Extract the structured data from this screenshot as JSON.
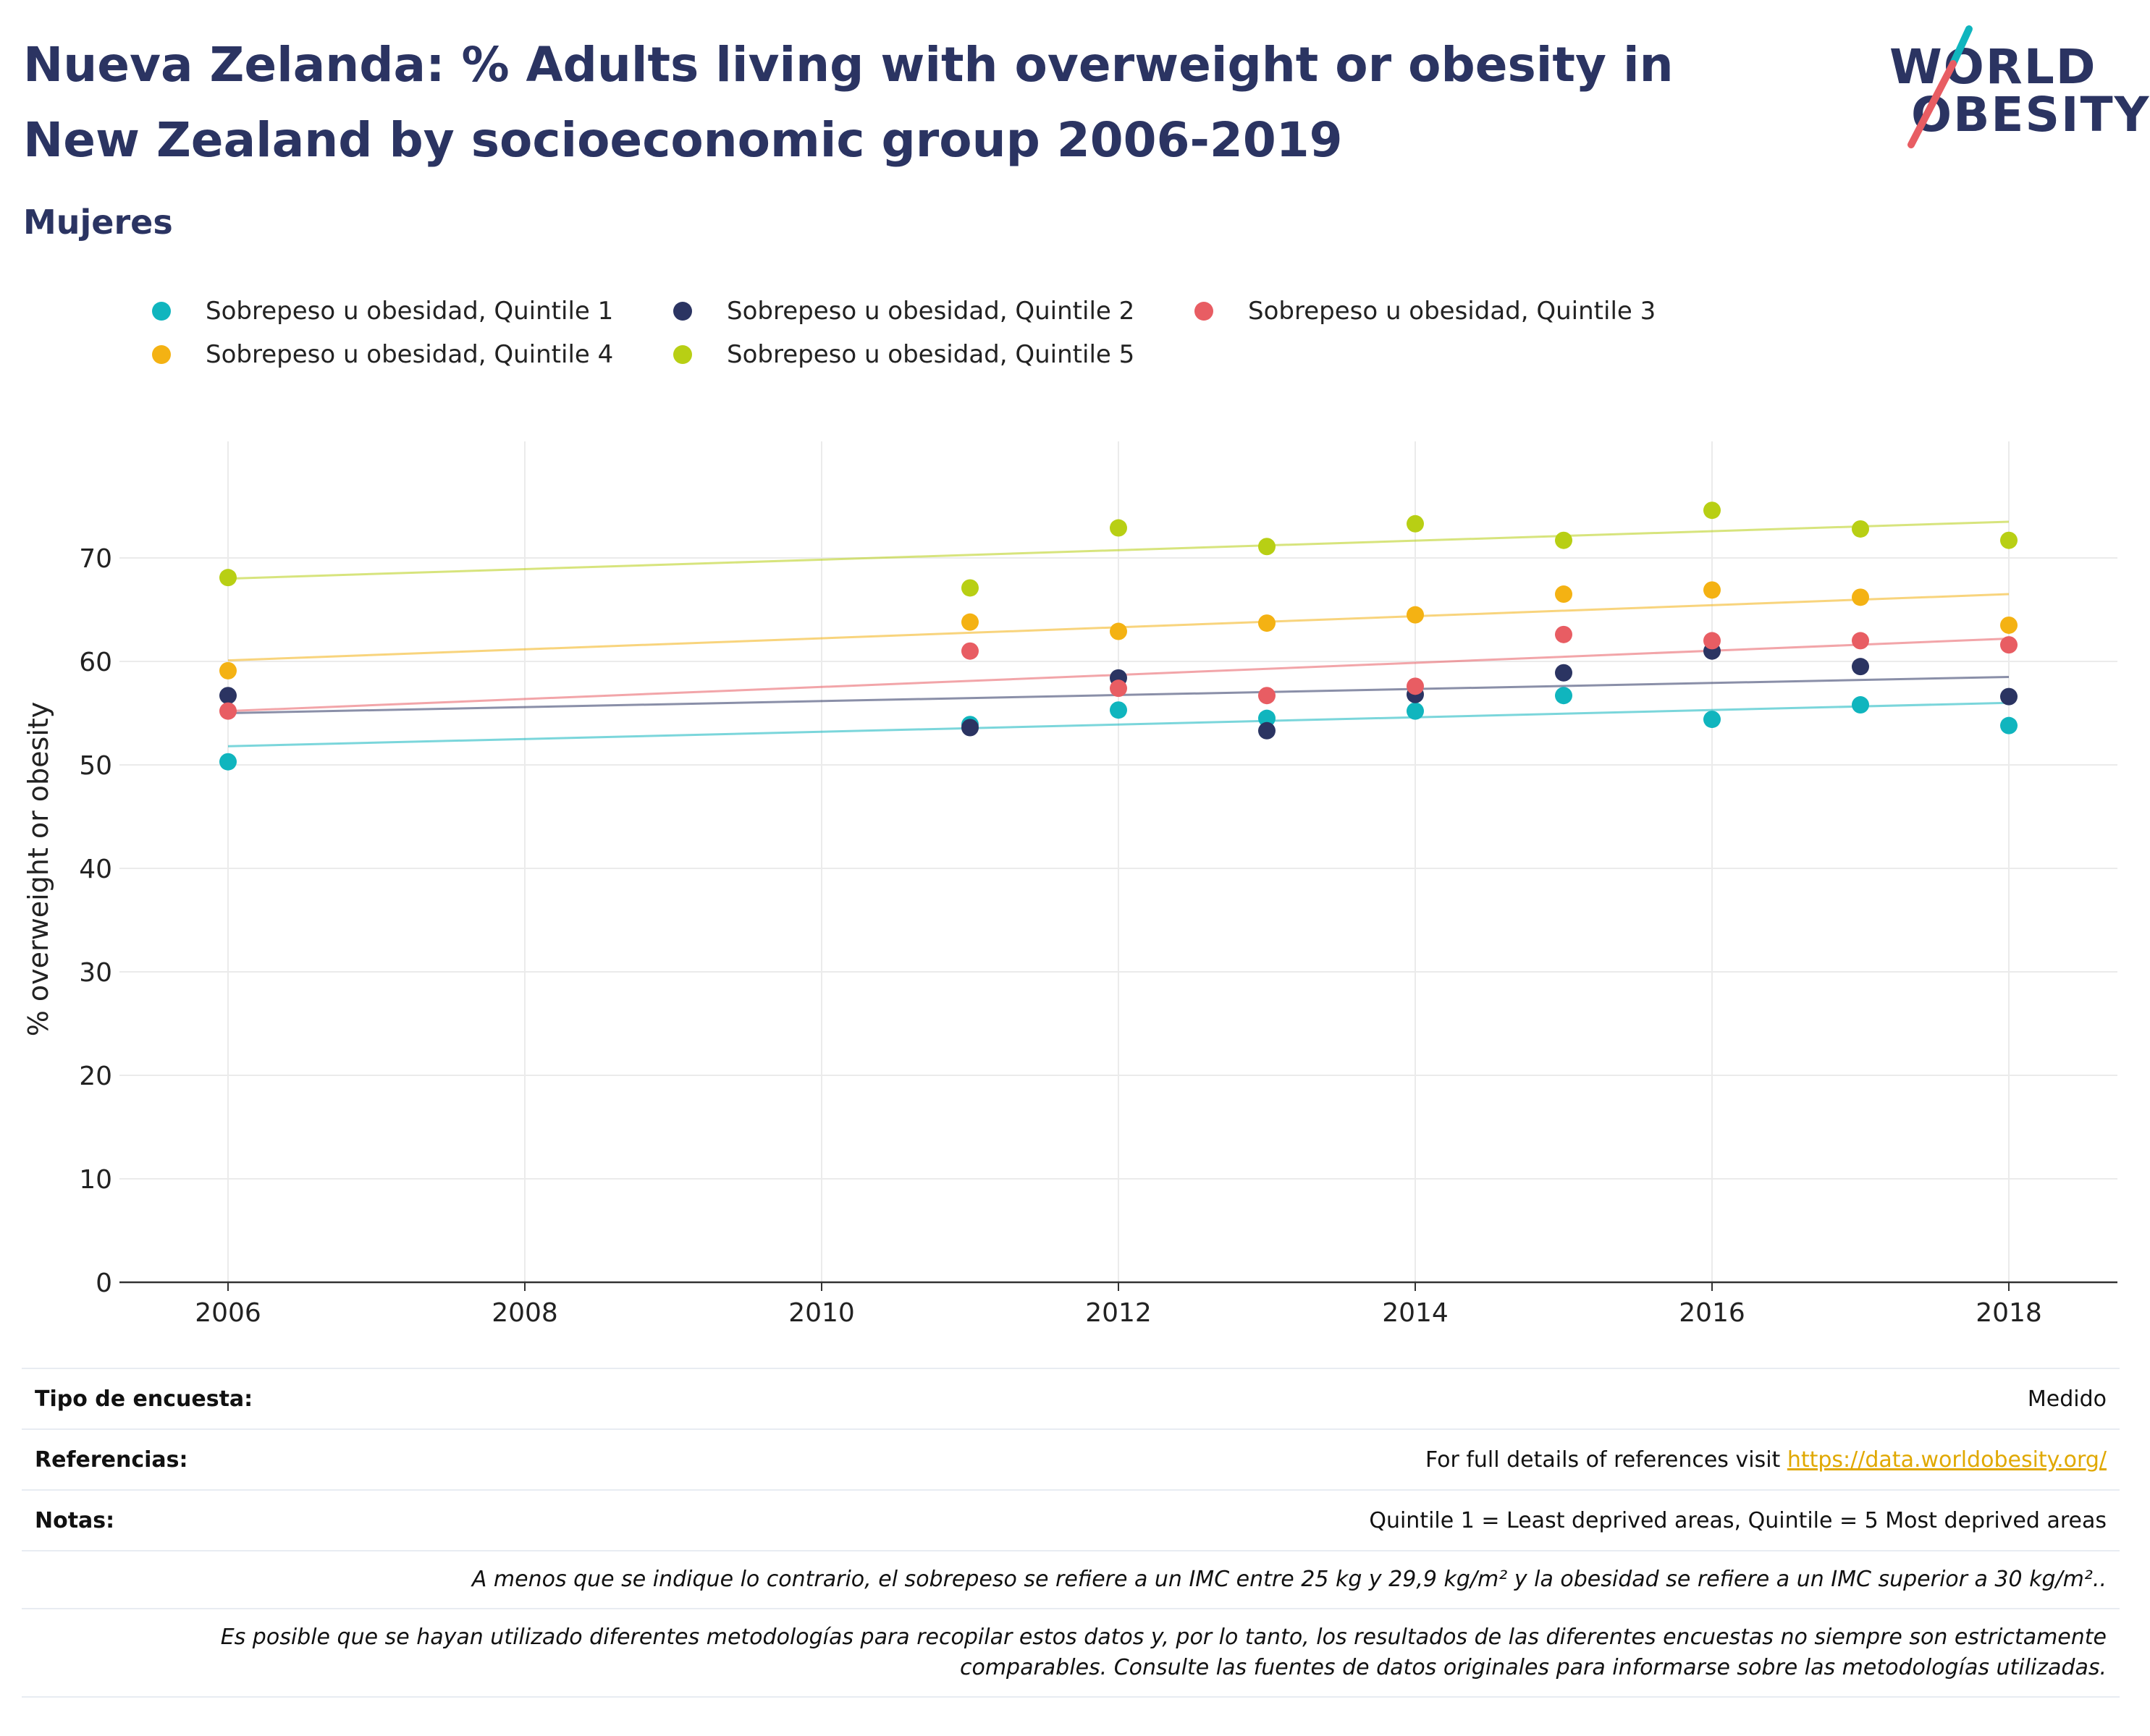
{
  "title": "Nueva Zelanda: % Adults living with overweight or obesity in New Zealand by socioeconomic group 2006-2019",
  "subtitle": "Mujeres",
  "logo": {
    "line1": "WORLD",
    "line2": "OBESITY"
  },
  "colors": {
    "q1": "#10b5be",
    "q2": "#2b3462",
    "q3": "#e85d63",
    "q4": "#f4b213",
    "q5": "#b8cf14",
    "accent": "#2b3462",
    "link": "#e0a800"
  },
  "legend": [
    {
      "label": "Sobrepeso u obesidad, Quintile 1",
      "color": "#10b5be"
    },
    {
      "label": "Sobrepeso u obesidad, Quintile 2",
      "color": "#2b3462"
    },
    {
      "label": "Sobrepeso u obesidad, Quintile 3",
      "color": "#e85d63"
    },
    {
      "label": "Sobrepeso u obesidad, Quintile 4",
      "color": "#f4b213"
    },
    {
      "label": "Sobrepeso u obesidad, Quintile 5",
      "color": "#b8cf14"
    }
  ],
  "chart_data": {
    "type": "scatter",
    "ylabel": "% overweight or obesity",
    "xlabel": "",
    "xlim": [
      2005.3,
      2018.8
    ],
    "ylim": [
      0,
      80
    ],
    "xticks": [
      2006,
      2008,
      2010,
      2012,
      2014,
      2016,
      2018
    ],
    "yticks": [
      0,
      10,
      20,
      30,
      40,
      50,
      60,
      70
    ],
    "grid": true,
    "legend_position": "top",
    "trendlines": true,
    "series": [
      {
        "name": "Sobrepeso u obesidad, Quintile 1",
        "color": "#10b5be",
        "x": [
          2006,
          2011,
          2012,
          2013,
          2014,
          2015,
          2016,
          2017,
          2018
        ],
        "y": [
          50.3,
          53.9,
          55.3,
          54.5,
          55.2,
          56.7,
          54.4,
          55.8,
          53.8
        ],
        "trend": [
          51.8,
          56.0
        ]
      },
      {
        "name": "Sobrepeso u obesidad, Quintile 2",
        "color": "#2b3462",
        "x": [
          2006,
          2011,
          2012,
          2013,
          2014,
          2015,
          2016,
          2017,
          2018
        ],
        "y": [
          56.7,
          53.6,
          58.4,
          53.3,
          56.8,
          58.9,
          61.0,
          59.5,
          56.6
        ],
        "trend": [
          55.0,
          58.5
        ]
      },
      {
        "name": "Sobrepeso u obesidad, Quintile 3",
        "color": "#e85d63",
        "x": [
          2006,
          2011,
          2012,
          2013,
          2014,
          2015,
          2016,
          2017,
          2018
        ],
        "y": [
          55.2,
          61.0,
          57.4,
          56.7,
          57.6,
          62.6,
          62.0,
          62.0,
          61.6
        ],
        "trend": [
          55.2,
          62.2
        ]
      },
      {
        "name": "Sobrepeso u obesidad, Quintile 4",
        "color": "#f4b213",
        "x": [
          2006,
          2011,
          2012,
          2013,
          2014,
          2015,
          2016,
          2017,
          2018
        ],
        "y": [
          59.1,
          63.8,
          62.9,
          63.7,
          64.5,
          66.5,
          66.9,
          66.2,
          63.5
        ],
        "trend": [
          60.1,
          66.5
        ]
      },
      {
        "name": "Sobrepeso u obesidad, Quintile 5",
        "color": "#b8cf14",
        "x": [
          2006,
          2011,
          2012,
          2013,
          2014,
          2015,
          2016,
          2017,
          2018
        ],
        "y": [
          68.1,
          67.1,
          72.9,
          71.1,
          73.3,
          71.7,
          74.6,
          72.8,
          71.7
        ],
        "trend": [
          68.0,
          73.5
        ]
      }
    ]
  },
  "info": {
    "survey_label": "Tipo de encuesta:",
    "survey_value": "Medido",
    "refs_label": "Referencias:",
    "refs_text": "For full details of references visit ",
    "refs_link": "https://data.worldobesity.org/",
    "notes_label": "Notas:",
    "notes_value": "Quintile 1 = Least deprived areas, Quintile = 5 Most deprived areas",
    "note_bmi": "A menos que se indique lo contrario, el sobrepeso se refiere a un IMC entre 25 kg y 29,9 kg/m² y la obesidad se refiere a un IMC superior a 30 kg/m²..",
    "note_methods": "Es posible que se hayan utilizado diferentes metodologías para recopilar estos datos y, por lo tanto, los resultados de las diferentes encuestas no siempre son estrictamente comparables. Consulte las fuentes de datos originales para informarse sobre las metodologías utilizadas."
  }
}
